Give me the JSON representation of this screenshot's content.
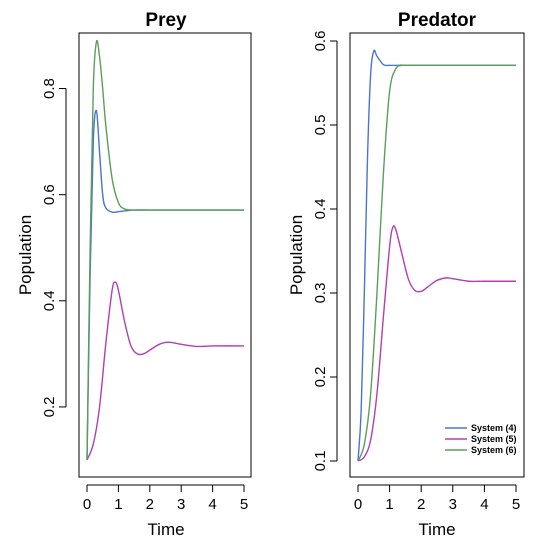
{
  "chart_data": [
    {
      "type": "line",
      "title": "Prey",
      "xlabel": "Time",
      "ylabel": "Population",
      "xlim": [
        0,
        5
      ],
      "ylim": [
        0.1,
        0.9
      ],
      "xticks": [
        "0",
        "1",
        "2",
        "3",
        "4",
        "5"
      ],
      "yticks": [
        "0.2",
        "0.4",
        "0.6",
        "0.8"
      ],
      "series": [
        {
          "name": "System (4)",
          "color": "#4a73d4",
          "x": [
            0,
            0.1,
            0.2,
            0.3,
            0.4,
            0.5,
            0.6,
            0.8,
            1.0,
            1.5,
            2.0,
            3.0,
            5.0
          ],
          "y": [
            0.1,
            0.45,
            0.7,
            0.758,
            0.68,
            0.6,
            0.575,
            0.567,
            0.568,
            0.571,
            0.571,
            0.571,
            0.571
          ]
        },
        {
          "name": "System (5)",
          "color": "#b03fb5",
          "x": [
            0,
            0.2,
            0.4,
            0.6,
            0.8,
            0.9,
            1.0,
            1.2,
            1.4,
            1.6,
            1.8,
            2.0,
            2.3,
            2.6,
            3.0,
            3.5,
            4.0,
            5.0
          ],
          "y": [
            0.1,
            0.13,
            0.2,
            0.32,
            0.42,
            0.435,
            0.42,
            0.36,
            0.315,
            0.3,
            0.3,
            0.307,
            0.318,
            0.322,
            0.318,
            0.314,
            0.315,
            0.315
          ]
        },
        {
          "name": "System (6)",
          "color": "#5a9e5a",
          "x": [
            0,
            0.1,
            0.2,
            0.3,
            0.4,
            0.5,
            0.6,
            0.8,
            1.0,
            1.2,
            1.5,
            2.0,
            5.0
          ],
          "y": [
            0.1,
            0.5,
            0.8,
            0.888,
            0.86,
            0.8,
            0.73,
            0.63,
            0.585,
            0.573,
            0.571,
            0.571,
            0.571
          ]
        }
      ]
    },
    {
      "type": "line",
      "title": "Predator",
      "xlabel": "Time",
      "ylabel": "Population",
      "xlim": [
        0,
        5
      ],
      "ylim": [
        0.1,
        0.6
      ],
      "xticks": [
        "0",
        "1",
        "2",
        "3",
        "4",
        "5"
      ],
      "yticks": [
        "0.1",
        "0.2",
        "0.3",
        "0.4",
        "0.5",
        "0.6"
      ],
      "legend": {
        "position": "bottom-right",
        "entries": [
          "System (4)",
          "System (5)",
          "System (6)"
        ]
      },
      "series": [
        {
          "name": "System (4)",
          "color": "#4a73d4",
          "x": [
            0,
            0.1,
            0.2,
            0.3,
            0.4,
            0.5,
            0.6,
            0.8,
            1.0,
            1.5,
            5.0
          ],
          "y": [
            0.1,
            0.16,
            0.3,
            0.46,
            0.56,
            0.588,
            0.582,
            0.572,
            0.571,
            0.571,
            0.571
          ]
        },
        {
          "name": "System (5)",
          "color": "#b03fb5",
          "x": [
            0,
            0.2,
            0.4,
            0.6,
            0.8,
            1.0,
            1.1,
            1.2,
            1.4,
            1.6,
            1.8,
            2.0,
            2.2,
            2.5,
            2.8,
            3.0,
            3.5,
            4.0,
            5.0
          ],
          "y": [
            0.1,
            0.105,
            0.125,
            0.18,
            0.27,
            0.355,
            0.378,
            0.375,
            0.345,
            0.316,
            0.303,
            0.302,
            0.307,
            0.315,
            0.318,
            0.317,
            0.314,
            0.314,
            0.314
          ]
        },
        {
          "name": "System (6)",
          "color": "#5a9e5a",
          "x": [
            0,
            0.2,
            0.4,
            0.6,
            0.8,
            1.0,
            1.2,
            1.4,
            1.6,
            5.0
          ],
          "y": [
            0.1,
            0.12,
            0.18,
            0.3,
            0.44,
            0.54,
            0.567,
            0.571,
            0.571,
            0.571
          ]
        }
      ]
    }
  ]
}
